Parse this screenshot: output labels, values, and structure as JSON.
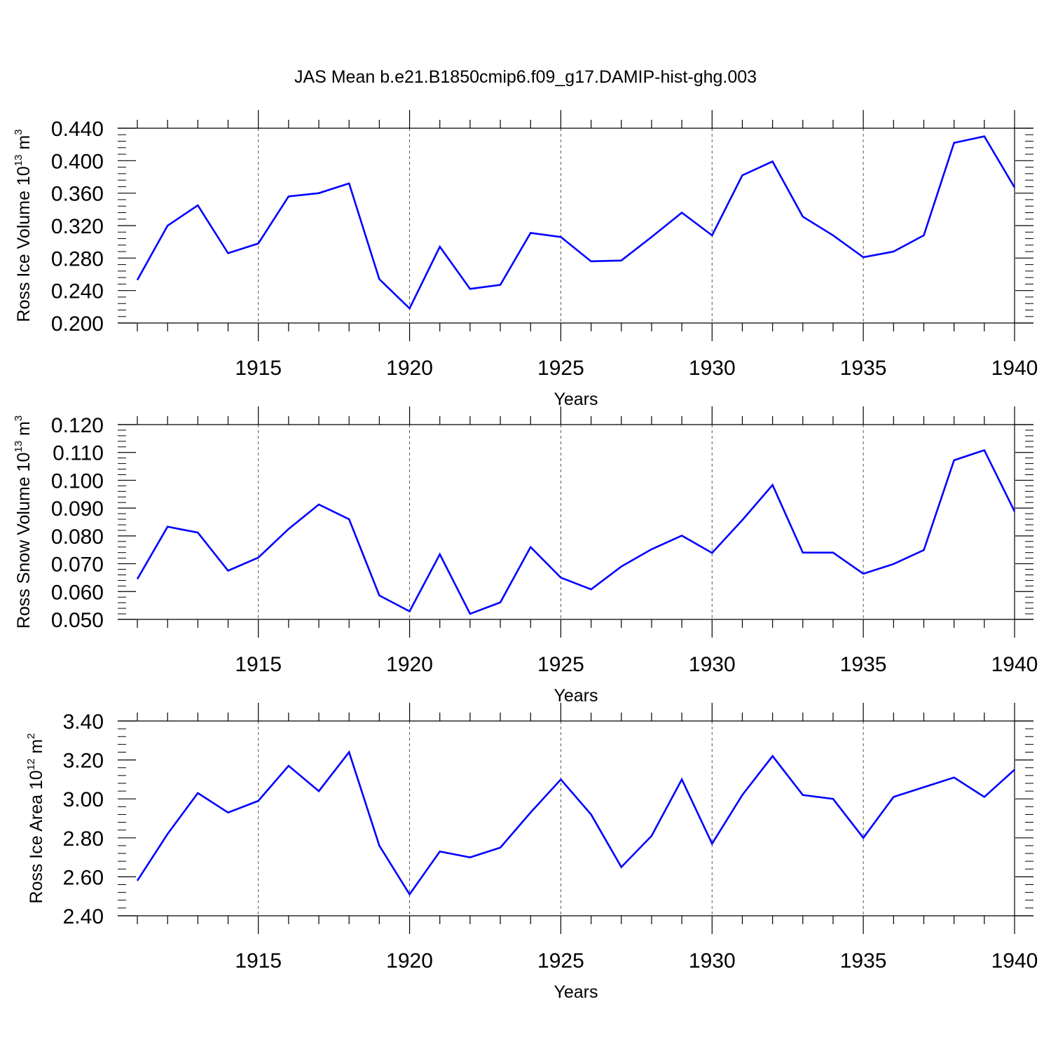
{
  "figure": {
    "title": "JAS Mean b.e21.B1850cmip6.f09_g17.DAMIP-hist-ghg.003",
    "line_color": "#0000ff",
    "grid_color": "#555555"
  },
  "chart_data": [
    {
      "type": "line",
      "title": "JAS Mean b.e21.B1850cmip6.f09_g17.DAMIP-hist-ghg.003",
      "ylabel_text": "Ross Ice Volume 10",
      "ylabel_sup1": "13",
      "ylabel_mid": " m",
      "ylabel_sup2": "3",
      "xlabel": "Years",
      "xlim": [
        1911,
        1940
      ],
      "ylim": [
        0.2,
        0.44
      ],
      "y_major_ticks": [
        "0.200",
        "0.240",
        "0.280",
        "0.320",
        "0.360",
        "0.400",
        "0.440"
      ],
      "x_major_ticks": [
        "1915",
        "1920",
        "1925",
        "1930",
        "1935",
        "1940"
      ],
      "grid": "vertical dashed at major x ticks",
      "x": [
        1911,
        1912,
        1913,
        1914,
        1915,
        1916,
        1917,
        1918,
        1919,
        1920,
        1921,
        1922,
        1923,
        1924,
        1925,
        1926,
        1927,
        1928,
        1929,
        1930,
        1931,
        1932,
        1933,
        1934,
        1935,
        1936,
        1937,
        1938,
        1939,
        1940
      ],
      "series": [
        {
          "values": [
            0.253,
            0.32,
            0.345,
            0.286,
            0.298,
            0.356,
            0.36,
            0.372,
            0.254,
            0.218,
            0.294,
            0.242,
            0.247,
            0.311,
            0.306,
            0.276,
            0.277,
            0.306,
            0.336,
            0.308,
            0.382,
            0.399,
            0.331,
            0.308,
            0.281,
            0.288,
            0.308,
            0.422,
            0.43,
            0.367
          ]
        }
      ]
    },
    {
      "type": "line",
      "ylabel_text": "Ross Snow Volume 10",
      "ylabel_sup1": "13",
      "ylabel_mid": " m",
      "ylabel_sup2": "3",
      "xlabel": "Years",
      "xlim": [
        1911,
        1940
      ],
      "ylim": [
        0.05,
        0.12
      ],
      "y_major_ticks": [
        "0.050",
        "0.060",
        "0.070",
        "0.080",
        "0.090",
        "0.100",
        "0.110",
        "0.120"
      ],
      "x_major_ticks": [
        "1915",
        "1920",
        "1925",
        "1930",
        "1935",
        "1940"
      ],
      "grid": "vertical dashed at major x ticks",
      "x": [
        1911,
        1912,
        1913,
        1914,
        1915,
        1916,
        1917,
        1918,
        1919,
        1920,
        1921,
        1922,
        1923,
        1924,
        1925,
        1926,
        1927,
        1928,
        1929,
        1930,
        1931,
        1932,
        1933,
        1934,
        1935,
        1936,
        1937,
        1938,
        1939,
        1940
      ],
      "series": [
        {
          "values": [
            0.0645,
            0.0833,
            0.0812,
            0.0675,
            0.0722,
            0.0825,
            0.0913,
            0.086,
            0.0586,
            0.0529,
            0.0734,
            0.052,
            0.0561,
            0.076,
            0.065,
            0.0608,
            0.069,
            0.0752,
            0.0801,
            0.0739,
            0.0857,
            0.0983,
            0.074,
            0.074,
            0.0664,
            0.0699,
            0.0749,
            0.1072,
            0.1108,
            0.0888
          ]
        }
      ]
    },
    {
      "type": "line",
      "ylabel_text": "Ross Ice Area 10",
      "ylabel_sup1": "12",
      "ylabel_mid": " m",
      "ylabel_sup2": "2",
      "xlabel": "Years",
      "xlim": [
        1911,
        1940
      ],
      "ylim": [
        2.4,
        3.4
      ],
      "y_major_ticks": [
        "2.40",
        "2.60",
        "2.80",
        "3.00",
        "3.20",
        "3.40"
      ],
      "x_major_ticks": [
        "1915",
        "1920",
        "1925",
        "1930",
        "1935",
        "1940"
      ],
      "grid": "vertical dashed at major x ticks",
      "x": [
        1911,
        1912,
        1913,
        1914,
        1915,
        1916,
        1917,
        1918,
        1919,
        1920,
        1921,
        1922,
        1923,
        1924,
        1925,
        1926,
        1927,
        1928,
        1929,
        1930,
        1931,
        1932,
        1933,
        1934,
        1935,
        1936,
        1937,
        1938,
        1939,
        1940
      ],
      "series": [
        {
          "values": [
            2.58,
            2.82,
            3.03,
            2.93,
            2.99,
            3.17,
            3.04,
            3.24,
            2.76,
            2.51,
            2.73,
            2.7,
            2.75,
            2.93,
            3.1,
            2.92,
            2.65,
            2.81,
            3.1,
            2.77,
            3.02,
            3.22,
            3.02,
            3.0,
            2.8,
            3.01,
            3.06,
            3.11,
            3.01,
            3.15
          ]
        }
      ]
    }
  ]
}
